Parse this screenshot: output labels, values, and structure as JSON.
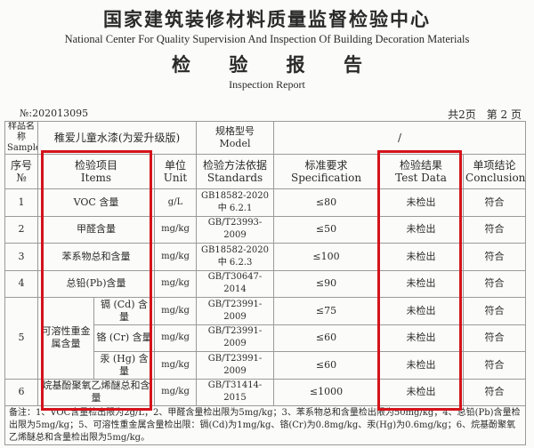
{
  "header": {
    "org_cn": "国家建筑装修材料质量监督检验中心",
    "org_en": "National Center For Quality Supervision And Inspection Of Building Decoration Materials",
    "report_cn": "检 验 报 告",
    "report_en": "Inspection Report",
    "report_no": "№:202013095",
    "total_pages": "共2页",
    "page": "第 2 页"
  },
  "sample": {
    "label": "样品名称 Sample",
    "value": "稚爱儿童水漆(为爱升级版)",
    "model_label": "规格型号 Model",
    "model_value": "/"
  },
  "columns": {
    "no": [
      "序号",
      "№"
    ],
    "items": [
      "检验项目",
      "Items"
    ],
    "unit": [
      "单位",
      "Unit"
    ],
    "standards": [
      "检验方法依据",
      "Standards"
    ],
    "spec": [
      "标准要求",
      "Specification"
    ],
    "result": [
      "检验结果",
      "Test Data"
    ],
    "conclusion": [
      "单项结论",
      "Conclusion"
    ]
  },
  "rows": [
    {
      "no": "1",
      "item": "VOC 含量",
      "unit": "g/L",
      "standard": [
        "GB18582-2020",
        "中 6.2.1"
      ],
      "spec": "≤80",
      "result": "未检出",
      "conclusion": "符合"
    },
    {
      "no": "2",
      "item": "甲醛含量",
      "unit": "mg/kg",
      "standard": [
        "GB/T23993-",
        "2009"
      ],
      "spec": "≤50",
      "result": "未检出",
      "conclusion": "符合"
    },
    {
      "no": "3",
      "item": "苯系物总和含量",
      "unit": "mg/kg",
      "standard": [
        "GB18582-2020",
        "中 6.2.3"
      ],
      "spec": "≤100",
      "result": "未检出",
      "conclusion": "符合"
    },
    {
      "no": "4",
      "item": "总铅(Pb)含量",
      "unit": "mg/kg",
      "standard": [
        "GB/T30647-",
        "2014"
      ],
      "spec": "≤90",
      "result": "未检出",
      "conclusion": "符合"
    },
    {
      "no": "5",
      "item": "可溶性重金属含量",
      "subs": [
        {
          "item": "镉 (Cd) 含量",
          "unit": "mg/kg",
          "standard": [
            "GB/T23991-",
            "2009"
          ],
          "spec": "≤75",
          "result": "未检出",
          "conclusion": "符合"
        },
        {
          "item": "铬 (Cr) 含量",
          "unit": "mg/kg",
          "standard": [
            "GB/T23991-",
            "2009"
          ],
          "spec": "≤60",
          "result": "未检出",
          "conclusion": "符合"
        },
        {
          "item": "汞 (Hg) 含量",
          "unit": "mg/kg",
          "standard": [
            "GB/T23991-",
            "2009"
          ],
          "spec": "≤60",
          "result": "未检出",
          "conclusion": "符合"
        }
      ]
    },
    {
      "no": "6",
      "item": "烷基酚聚氧乙烯醚总和含量",
      "unit": "mg/kg",
      "standard": [
        "GB/T31414-",
        "2015"
      ],
      "spec": "≤1000",
      "result": "未检出",
      "conclusion": "符合"
    }
  ],
  "notes": "备注：1、VOC含量检出限为2g/L；2、甲醛含量检出限为5mg/kg；3、苯系物总和含量检出限为50mg/kg；4、总铅(Pb)含量检出限为5mg/kg；5、可溶性重金属含量检出限：镉(Cd)为1mg/kg、铬(Cr)为0.8mg/kg、汞(Hg)为0.6mg/kg；6、烷基酚聚氧乙烯醚总和含量检出限为5mg/kg。",
  "highlight_color": "#d4131b"
}
